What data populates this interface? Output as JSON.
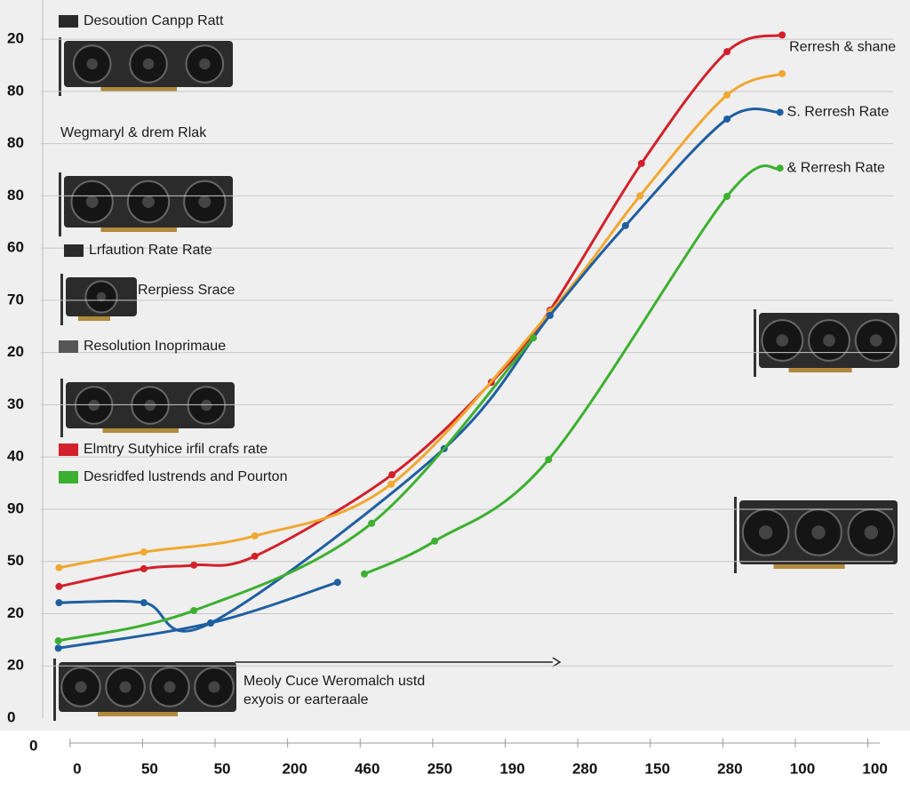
{
  "chart_data": {
    "type": "line",
    "corner_label": "0",
    "xlim": [
      -0.5,
      11.25
    ],
    "xticks": [
      {
        "value": 0,
        "label": "0"
      },
      {
        "value": 1,
        "label": "50"
      },
      {
        "value": 2,
        "label": "50"
      },
      {
        "value": 3,
        "label": "200"
      },
      {
        "value": 4,
        "label": "460"
      },
      {
        "value": 5,
        "label": "250"
      },
      {
        "value": 6,
        "label": "190"
      },
      {
        "value": 7,
        "label": "280"
      },
      {
        "value": 8,
        "label": "150"
      },
      {
        "value": 9,
        "label": "280"
      },
      {
        "value": 10,
        "label": "100"
      },
      {
        "value": 11,
        "label": "100"
      }
    ],
    "ylim": [
      0,
      13.75
    ],
    "yticks": [
      {
        "value": 0,
        "label": "0"
      },
      {
        "value": 1,
        "label": "20"
      },
      {
        "value": 2,
        "label": "20"
      },
      {
        "value": 3,
        "label": "50"
      },
      {
        "value": 4,
        "label": "90"
      },
      {
        "value": 5,
        "label": "40"
      },
      {
        "value": 6,
        "label": "30"
      },
      {
        "value": 7,
        "label": "20"
      },
      {
        "value": 8,
        "label": "70"
      },
      {
        "value": 9,
        "label": "60"
      },
      {
        "value": 10,
        "label": "80"
      },
      {
        "value": 11,
        "label": "80"
      },
      {
        "value": 12,
        "label": "80"
      },
      {
        "value": 13,
        "label": "20"
      }
    ],
    "grid": true,
    "series": [
      {
        "name": "Rerresh & shane",
        "color": "#d3202a",
        "x": [
          -0.25,
          0.92,
          1.61,
          2.45,
          4.34,
          5.71,
          6.52,
          7.78,
          8.96,
          9.72
        ],
        "values": [
          2.52,
          2.86,
          2.93,
          3.1,
          4.66,
          6.43,
          7.81,
          10.62,
          12.76,
          13.08
        ]
      },
      {
        "color": "#f0a830",
        "x": [
          -0.25,
          0.92,
          2.45,
          4.33,
          6.53,
          7.76,
          8.96,
          9.72
        ],
        "values": [
          2.88,
          3.18,
          3.49,
          4.48,
          7.79,
          10.0,
          11.93,
          12.34
        ]
      },
      {
        "name": "S. Rerresh Rate",
        "color": "#1f5fa0",
        "x": [
          -0.25,
          0.92,
          1.84,
          5.06,
          6.52,
          7.56,
          8.96,
          9.69
        ],
        "values": [
          2.21,
          2.21,
          1.82,
          5.16,
          7.71,
          9.43,
          11.47,
          11.6
        ]
      },
      {
        "color": "#1f5fa0",
        "x": [
          -0.26,
          1.84,
          3.59
        ],
        "values": [
          1.34,
          1.82,
          2.6
        ]
      },
      {
        "color": "#3cb030",
        "x": [
          -0.26,
          1.61,
          4.06,
          6.29
        ],
        "values": [
          1.48,
          2.06,
          3.73,
          7.28
        ]
      },
      {
        "name": "& Rerresh Rate",
        "color": "#3cb030",
        "x": [
          3.96,
          4.93,
          6.5,
          8.96,
          9.69
        ],
        "values": [
          2.76,
          3.39,
          4.95,
          9.99,
          10.53
        ]
      }
    ],
    "legend": [
      {
        "label": "Desoution Canpp Ratt",
        "color": "#2a2a2a"
      },
      {
        "label": "Wegmaryl & drem Rlak"
      },
      {
        "label": "Lrfaution Rate Rate",
        "color": "#2a2a2a"
      },
      {
        "label": "Rerpiess Srace"
      },
      {
        "label": "Resolution Inoprimaue",
        "color": "#555555"
      },
      {
        "label": "Elmtry Sutyhice irfil crafs rate",
        "color": "#d3202a"
      },
      {
        "label": "Desridfed lustrends and Pourton",
        "color": "#3cb030"
      }
    ],
    "annotation": [
      "Meoly Cuce Weromalch ustd",
      "exyois or earteraale"
    ]
  }
}
